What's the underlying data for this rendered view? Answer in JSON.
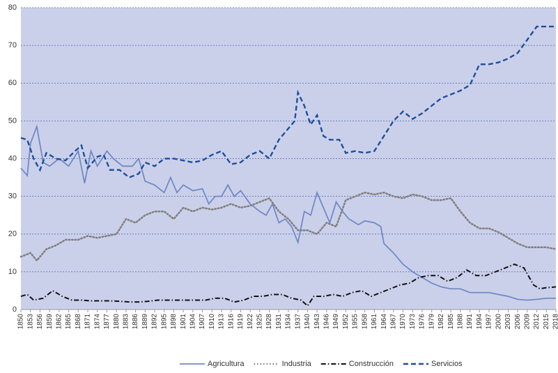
{
  "chart_data": {
    "type": "line",
    "xlim": [
      1850,
      2018
    ],
    "ylim": [
      0,
      80
    ],
    "xticks": [
      1850,
      1853,
      1856,
      1859,
      1862,
      1865,
      1868,
      1871,
      1874,
      1877,
      1880,
      1883,
      1886,
      1889,
      1892,
      1895,
      1898,
      1901,
      1904,
      1907,
      1910,
      1913,
      1916,
      1919,
      1922,
      1925,
      1928,
      1931,
      1934,
      1937,
      1940,
      1943,
      1946,
      1949,
      1952,
      1955,
      1958,
      1961,
      1964,
      1967,
      1970,
      1973,
      1976,
      1979,
      1982,
      1985,
      1988,
      1991,
      1994,
      1997,
      2000,
      2003,
      2006,
      2009,
      2012,
      2015,
      2018
    ],
    "yticks": [
      0,
      10,
      20,
      30,
      40,
      50,
      60,
      70,
      80
    ],
    "grid": true,
    "background": "#cbd0ea",
    "legend": "bottom",
    "series": [
      {
        "name": "Agricultura",
        "color": "#7089c6",
        "style": "solid",
        "x": [
          1850,
          1852,
          1853,
          1855,
          1857,
          1859,
          1862,
          1865,
          1868,
          1870,
          1872,
          1874,
          1877,
          1879,
          1882,
          1885,
          1887,
          1889,
          1892,
          1895,
          1897,
          1899,
          1901,
          1904,
          1907,
          1909,
          1911,
          1913,
          1915,
          1917,
          1919,
          1922,
          1925,
          1927,
          1929,
          1931,
          1933,
          1935,
          1937,
          1939,
          1941,
          1943,
          1945,
          1947,
          1949,
          1951,
          1953,
          1956,
          1958,
          1961,
          1963,
          1964,
          1967,
          1970,
          1973,
          1976,
          1979,
          1982,
          1985,
          1988,
          1991,
          1994,
          1997,
          2000,
          2003,
          2006,
          2009,
          2012,
          2015,
          2018
        ],
        "values": [
          37.5,
          35.5,
          44,
          48.5,
          39,
          38,
          40,
          38,
          42,
          33.5,
          42,
          38,
          42,
          40,
          38,
          38,
          40,
          34,
          33,
          31,
          35,
          31,
          33,
          31.5,
          32,
          28,
          30,
          30,
          33,
          30,
          31.5,
          28,
          26,
          25,
          28,
          23,
          24,
          22,
          17.8,
          26,
          25,
          31,
          27,
          23,
          28.5,
          26,
          24,
          22.5,
          23.5,
          23,
          22,
          17.5,
          15,
          12,
          10,
          8.5,
          7,
          6,
          5.5,
          5.5,
          4.5,
          4.5,
          4.5,
          4,
          3.5,
          2.7,
          2.5,
          2.7,
          3,
          3
        ]
      },
      {
        "name": "Industria",
        "color": "#808080",
        "style": "dotted",
        "x": [
          1850,
          1853,
          1855,
          1858,
          1861,
          1864,
          1868,
          1871,
          1874,
          1877,
          1880,
          1883,
          1886,
          1889,
          1892,
          1895,
          1898,
          1901,
          1904,
          1907,
          1910,
          1913,
          1916,
          1919,
          1922,
          1925,
          1928,
          1931,
          1934,
          1937,
          1940,
          1943,
          1946,
          1949,
          1952,
          1955,
          1958,
          1961,
          1964,
          1967,
          1970,
          1973,
          1976,
          1979,
          1982,
          1985,
          1988,
          1991,
          1994,
          1997,
          2000,
          2003,
          2006,
          2009,
          2012,
          2015,
          2018
        ],
        "values": [
          14,
          15,
          13,
          16,
          17,
          18.5,
          18.5,
          19.5,
          19,
          19.5,
          20,
          24,
          23,
          25,
          26,
          26,
          24,
          27,
          26,
          27,
          26.5,
          27,
          28,
          27,
          27.5,
          28.5,
          29.5,
          26,
          24,
          21,
          21,
          20,
          23,
          22,
          29,
          30,
          31,
          30.5,
          31,
          30,
          29.5,
          30.5,
          30,
          29,
          29,
          29.5,
          26,
          23,
          21.5,
          21.5,
          20.5,
          19,
          17.5,
          16.5,
          16.5,
          16.5,
          16
        ]
      },
      {
        "name": "Construcción",
        "color": "#111111",
        "style": "dashdot",
        "x": [
          1850,
          1852,
          1854,
          1857,
          1860,
          1863,
          1866,
          1869,
          1872,
          1875,
          1878,
          1881,
          1884,
          1887,
          1890,
          1893,
          1896,
          1899,
          1902,
          1905,
          1908,
          1911,
          1914,
          1917,
          1920,
          1923,
          1926,
          1929,
          1932,
          1935,
          1938,
          1940,
          1942,
          1945,
          1948,
          1951,
          1954,
          1957,
          1960,
          1963,
          1966,
          1969,
          1972,
          1975,
          1978,
          1981,
          1984,
          1987,
          1990,
          1993,
          1996,
          1999,
          2002,
          2005,
          2008,
          2011,
          2013,
          2015,
          2018
        ],
        "values": [
          3.5,
          4,
          2.5,
          3,
          5,
          3.5,
          2.5,
          2.5,
          2.3,
          2.3,
          2.3,
          2.2,
          2,
          2,
          2.2,
          2.5,
          2.5,
          2.5,
          2.5,
          2.5,
          2.5,
          3,
          3,
          2,
          2.5,
          3.5,
          3.5,
          4,
          4,
          3,
          2.5,
          1,
          3.5,
          3.5,
          4,
          3.5,
          4.5,
          5,
          3.5,
          4.5,
          5.5,
          6.5,
          7,
          8.5,
          9,
          9,
          7.5,
          8.5,
          10.5,
          9,
          9,
          10,
          11,
          12,
          11,
          6.5,
          5.5,
          5.8,
          6
        ]
      },
      {
        "name": "Servicios",
        "color": "#1f4f9c",
        "style": "dashed",
        "x": [
          1850,
          1852,
          1854,
          1856,
          1858,
          1861,
          1864,
          1867,
          1869,
          1871,
          1874,
          1876,
          1878,
          1881,
          1884,
          1887,
          1889,
          1892,
          1895,
          1898,
          1901,
          1904,
          1907,
          1910,
          1913,
          1916,
          1919,
          1922,
          1925,
          1928,
          1931,
          1934,
          1936,
          1937,
          1939,
          1941,
          1943,
          1945,
          1947,
          1950,
          1952,
          1955,
          1958,
          1961,
          1964,
          1967,
          1970,
          1973,
          1976,
          1979,
          1982,
          1985,
          1988,
          1991,
          1994,
          1997,
          2000,
          2003,
          2006,
          2009,
          2012,
          2015,
          2018
        ],
        "values": [
          45.5,
          45,
          40,
          37,
          41.5,
          40,
          39.5,
          42,
          43.5,
          37.5,
          40.5,
          41,
          37,
          37,
          35,
          36,
          39,
          38,
          40,
          40,
          39.5,
          39,
          39.5,
          41,
          42,
          38.5,
          39,
          41,
          42,
          40,
          45,
          48,
          50,
          57.5,
          54,
          49,
          51.5,
          46,
          45,
          45,
          41.5,
          42,
          41.5,
          42,
          46,
          50,
          52.5,
          50.5,
          52,
          54,
          56,
          57,
          58,
          59.5,
          65,
          65,
          65.5,
          66.5,
          68,
          71.5,
          75,
          75,
          75
        ]
      }
    ]
  }
}
